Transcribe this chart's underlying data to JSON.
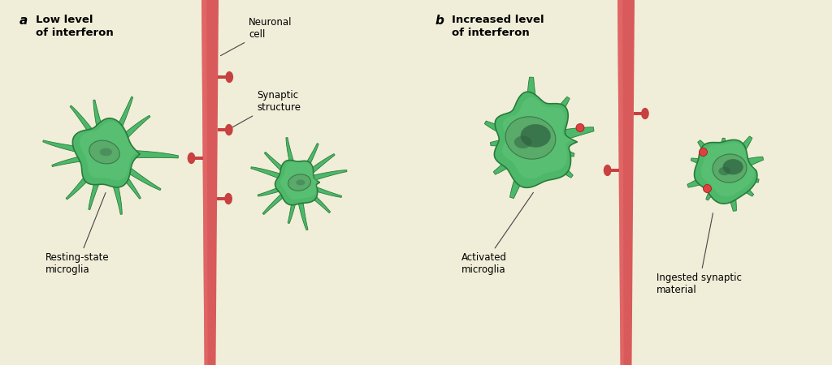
{
  "bg_color": "#f0eed8",
  "panel_a_title": "Low level\nof interferon",
  "panel_b_title": "Increased level\nof interferon",
  "label_a": "a",
  "label_b": "b",
  "neuronal_cell_label": "Neuronal\ncell",
  "synaptic_structure_label": "Synaptic\nstructure",
  "resting_state_label": "Resting-state\nmicroglia",
  "activated_label": "Activated\nmicroglia",
  "ingested_label": "Ingested synaptic\nmaterial",
  "microglia_fill": "#4db86a",
  "microglia_edge": "#2a7a3a",
  "microglia_light": "#6fcc82",
  "nucleus_fill": "#5aaa6a",
  "nucleus_dark": "#3a7a4a",
  "axon_color": "#d95a5a",
  "axon_light": "#e87070",
  "synapse_color": "#c84040",
  "red_dot_color": "#e04040",
  "annotation_color": "#111111",
  "line_color": "#555555"
}
